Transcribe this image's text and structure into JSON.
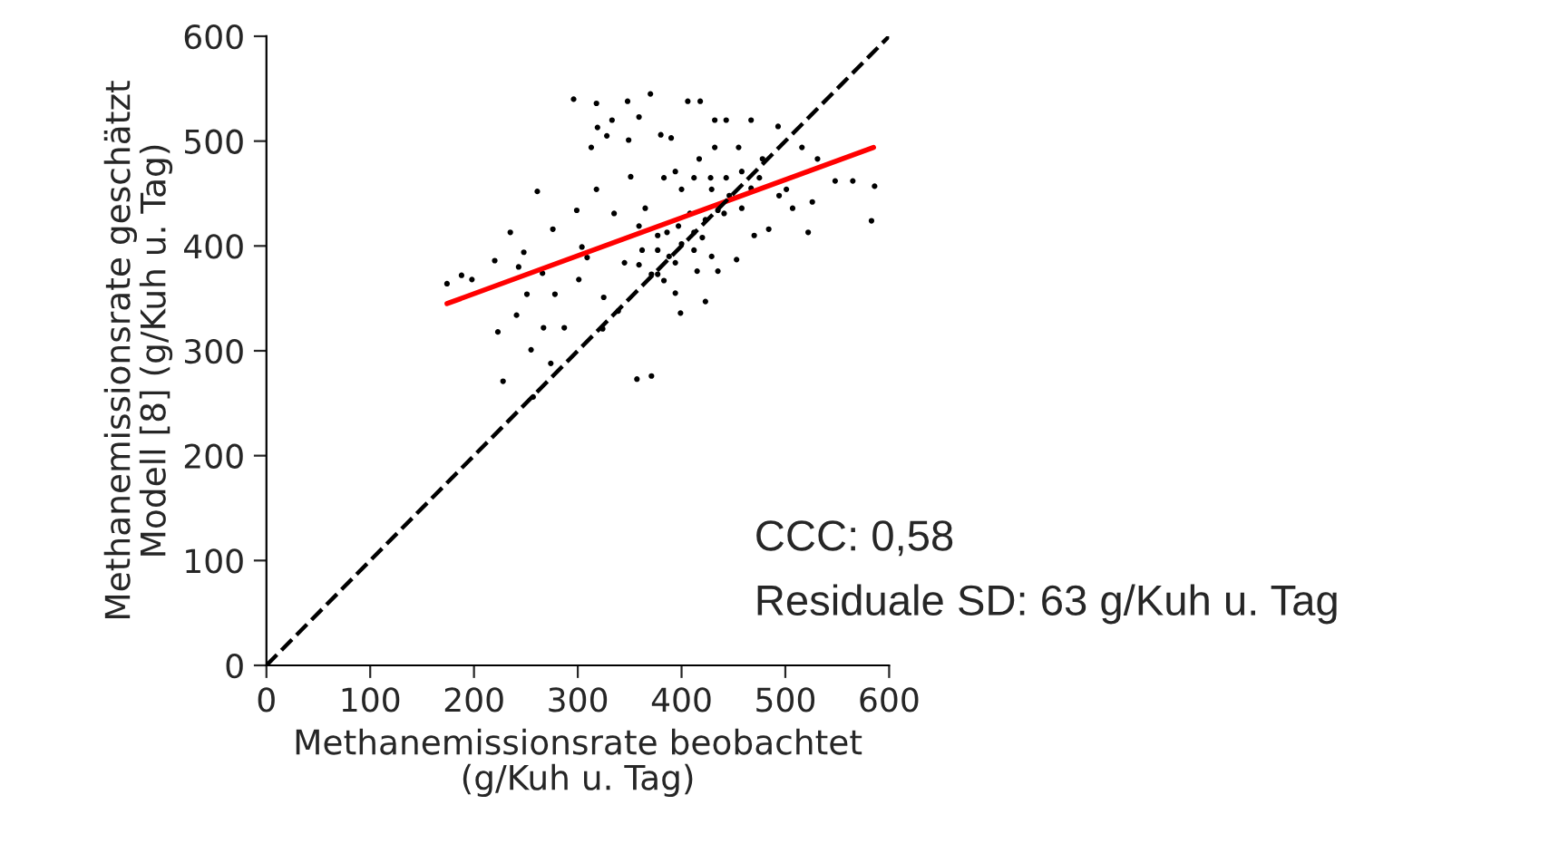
{
  "chart_data": {
    "type": "scatter",
    "xlabel": "Methanemissionsrate beobachtet\n(g/Kuh u. Tag)",
    "ylabel": "Methanemissionsrate geschätzt\nModell [8] (g/Kuh u. Tag)",
    "xlim": [
      0,
      600
    ],
    "ylim": [
      0,
      600
    ],
    "xticks": [
      0,
      100,
      200,
      300,
      400,
      500,
      600
    ],
    "yticks": [
      0,
      100,
      200,
      300,
      400,
      500,
      600
    ],
    "grid": false,
    "legend": false,
    "annotations": [
      "CCC: 0,58",
      "Residuale SD: 63 g/Kuh u. Tag"
    ],
    "series": [
      {
        "color": "#000000",
        "marker": "circle",
        "x": [
          174,
          188,
          198,
          220,
          235,
          243,
          248,
          261,
          223,
          228,
          241,
          251,
          255,
          257,
          266,
          267,
          274,
          276,
          278,
          287,
          296,
          299,
          301,
          304,
          309,
          318,
          318,
          319,
          313,
          325,
          324,
          328,
          333,
          335,
          339,
          348,
          349,
          351,
          359,
          357,
          370,
          371,
          365,
          362,
          371,
          380,
          383,
          386,
          377,
          390,
          394,
          394,
          399,
          397,
          400,
          406,
          408,
          412,
          418,
          417,
          420,
          423,
          428,
          432,
          432,
          435,
          435,
          443,
          443,
          446,
          453,
          455,
          458,
          467,
          467,
          470,
          478,
          484,
          493,
          494,
          501,
          507,
          516,
          522,
          526,
          531,
          548,
          565,
          583,
          586,
          359,
          377,
          388,
          400,
          412,
          423,
          441,
          377,
          359,
          345,
          394,
          412,
          429,
          458,
          475,
          429,
          415,
          383
        ],
        "values": [
          364,
          372,
          368,
          386,
          413,
          380,
          394,
          452,
          318,
          271,
          334,
          354,
          301,
          256,
          374,
          322,
          288,
          416,
          354,
          322,
          540,
          434,
          368,
          399,
          389,
          536,
          454,
          513,
          494,
          351,
          321,
          505,
          520,
          431,
          338,
          538,
          501,
          466,
          523,
          273,
          545,
          276,
          436,
          396,
          373,
          506,
          465,
          413,
          373,
          503,
          384,
          355,
          336,
          419,
          454,
          538,
          431,
          396,
          538,
          483,
          408,
          347,
          465,
          520,
          494,
          434,
          376,
          520,
          465,
          448,
          387,
          494,
          436,
          520,
          455,
          410,
          483,
          416,
          514,
          448,
          454,
          436,
          494,
          413,
          442,
          483,
          462,
          462,
          424,
          457,
          419,
          396,
          390,
          402,
          413,
          425,
          431,
          410,
          382,
          384,
          471,
          465,
          454,
          471,
          465,
          390,
          376,
          367
        ]
      },
      {
        "type": "line",
        "color": "#ff0000",
        "line_style": "solid",
        "x": [
          174,
          585
        ],
        "values": [
          345,
          494
        ]
      },
      {
        "type": "line",
        "color": "#000000",
        "line_style": "dashed",
        "x": [
          0,
          600
        ],
        "values": [
          0,
          600
        ]
      }
    ]
  }
}
